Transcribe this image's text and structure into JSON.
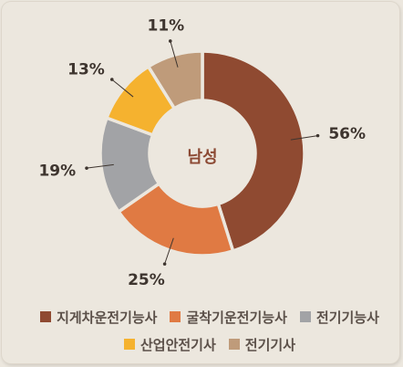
{
  "chart_data": {
    "type": "pie",
    "variant": "donut",
    "center_label": "남성",
    "slices": [
      {
        "category": "지게차운전기능사",
        "value": 56,
        "label": "56%",
        "color": "#8f4a31"
      },
      {
        "category": "굴착기운전기능사",
        "value": 25,
        "label": "25%",
        "color": "#e07a43"
      },
      {
        "category": "전기기능사",
        "value": 19,
        "label": "19%",
        "color": "#a2a3a6"
      },
      {
        "category": "산업안전기사",
        "value": 13,
        "label": "13%",
        "color": "#f5b22f"
      },
      {
        "category": "전기기사",
        "value": 11,
        "label": "11%",
        "color": "#bf9b7a"
      }
    ],
    "center_color": "#8c4a34",
    "legend_placement": "bottom"
  }
}
